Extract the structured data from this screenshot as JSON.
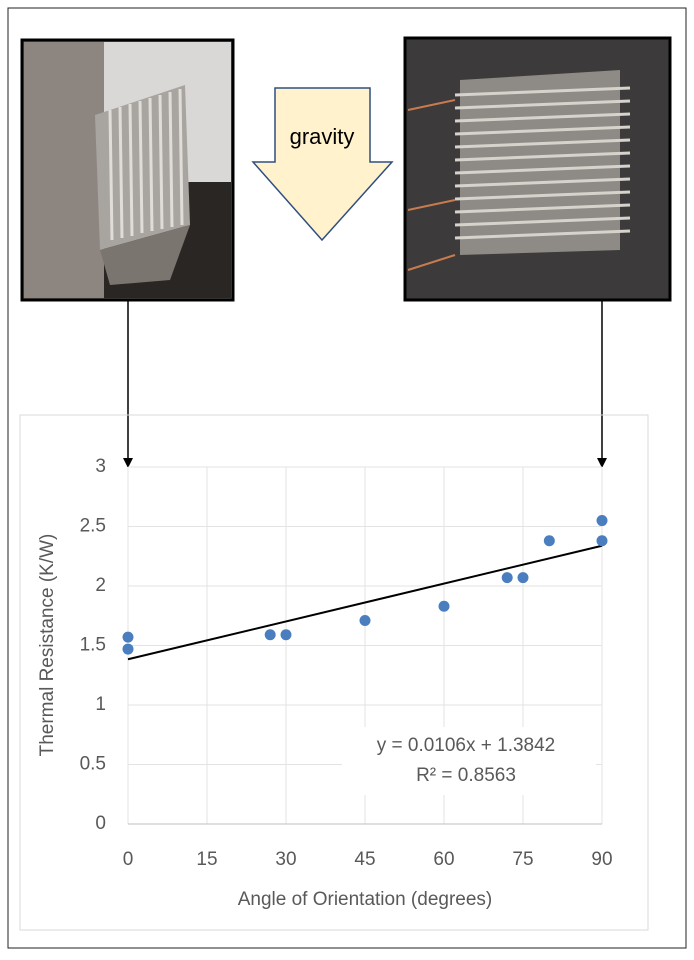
{
  "figure": {
    "arrow_label": "gravity"
  },
  "chart_data": {
    "type": "scatter",
    "x_label": "Angle of Orientation (degrees)",
    "y_label": "Thermal Resistance (K/W)",
    "x": [
      0,
      0,
      27,
      30,
      45,
      60,
      72,
      75,
      80,
      90,
      90
    ],
    "values": [
      1.57,
      1.47,
      1.59,
      1.59,
      1.71,
      1.83,
      2.07,
      2.07,
      2.38,
      2.55,
      2.38
    ],
    "color": "#4a7ebf",
    "xlim": [
      0,
      90
    ],
    "xticks": [
      0,
      15,
      30,
      45,
      60,
      75,
      90
    ],
    "ylim": [
      0,
      3
    ],
    "yticks": [
      0,
      0.5,
      1,
      1.5,
      2,
      2.5,
      3
    ],
    "grid": true,
    "trendline": {
      "slope": 0.0106,
      "intercept": 1.3842,
      "equation": "y = 0.0106x + 1.3842",
      "r_squared": "R² = 0.8563"
    }
  }
}
